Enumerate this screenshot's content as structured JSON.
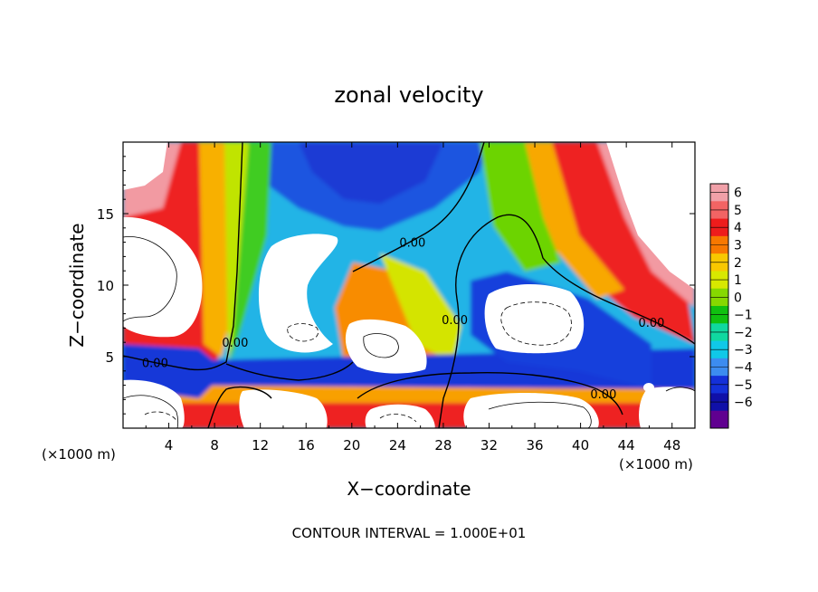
{
  "chart_data": {
    "type": "heatmap",
    "title": "zonal velocity",
    "xlabel": "X−coordinate",
    "ylabel": "Z−coordinate",
    "x_unit_left": "(×1000 m)",
    "x_unit_right": "(×1000 m)",
    "footer": "CONTOUR INTERVAL = 1.000E+01",
    "xlim": [
      0,
      50
    ],
    "ylim": [
      0,
      20
    ],
    "x_ticks": [
      4,
      8,
      12,
      16,
      20,
      24,
      28,
      32,
      36,
      40,
      44,
      48
    ],
    "y_ticks": [
      5,
      10,
      15
    ],
    "contour_labels": [
      {
        "text": "0.00",
        "x": 2.8,
        "y": 4.6
      },
      {
        "text": "0.00",
        "x": 9.8,
        "y": 6.0
      },
      {
        "text": "0.00",
        "x": 25.3,
        "y": 13.0
      },
      {
        "text": "0.00",
        "x": 29.0,
        "y": 7.6
      },
      {
        "text": "0.00",
        "x": 46.2,
        "y": 7.4
      },
      {
        "text": "0.00",
        "x": 42.0,
        "y": 2.4
      }
    ],
    "colorbar": {
      "labels": [
        "6",
        "5",
        "4",
        "3",
        "2",
        "1",
        "0",
        "−1",
        "−2",
        "−3",
        "−4",
        "−5",
        "−6"
      ],
      "colors": [
        "#f0a0a8",
        "#f26464",
        "#ee1c1c",
        "#f87800",
        "#f8c800",
        "#d8e800",
        "#86d800",
        "#10c010",
        "#10d8a0",
        "#10c8e8",
        "#3c8cf0",
        "#1430d8",
        "#1010a8",
        "#600090"
      ]
    }
  }
}
